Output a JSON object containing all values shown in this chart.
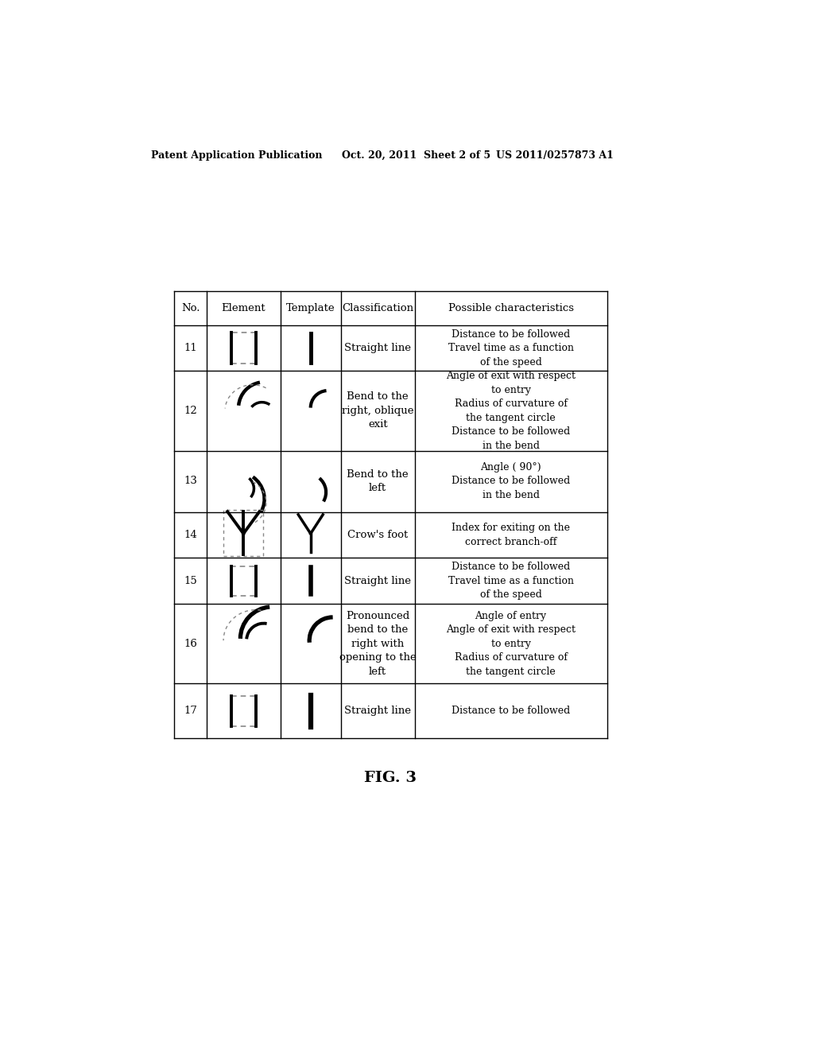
{
  "title_left": "Patent Application Publication",
  "title_center": "Oct. 20, 2011  Sheet 2 of 5",
  "title_right": "US 2011/0257873 A1",
  "fig_label": "FIG. 3",
  "headers": [
    "No.",
    "Element",
    "Template",
    "Classification",
    "Possible characteristics"
  ],
  "rows": [
    {
      "no": "11",
      "classification": "Straight line",
      "characteristics": "Distance to be followed\nTravel time as a function\nof the speed"
    },
    {
      "no": "12",
      "classification": "Bend to the\nright, oblique\nexit",
      "characteristics": "Angle of exit with respect\nto entry\nRadius of curvature of\nthe tangent circle\nDistance to be followed\nin the bend"
    },
    {
      "no": "13",
      "classification": "Bend to the\nleft",
      "characteristics": "Angle ( 90°)\nDistance to be followed\nin the bend"
    },
    {
      "no": "14",
      "classification": "Crow's foot",
      "characteristics": "Index for exiting on the\ncorrect branch-off"
    },
    {
      "no": "15",
      "classification": "Straight line",
      "characteristics": "Distance to be followed\nTravel time as a function\nof the speed"
    },
    {
      "no": "16",
      "classification": "Pronounced\nbend to the\nright with\nopening to the\nleft",
      "characteristics": "Angle of entry\nAngle of exit with respect\nto entry\nRadius of curvature of\nthe tangent circle"
    },
    {
      "no": "17",
      "classification": "Straight line",
      "characteristics": "Distance to be followed"
    }
  ],
  "background_color": "#ffffff",
  "line_color": "#000000",
  "text_color": "#000000"
}
